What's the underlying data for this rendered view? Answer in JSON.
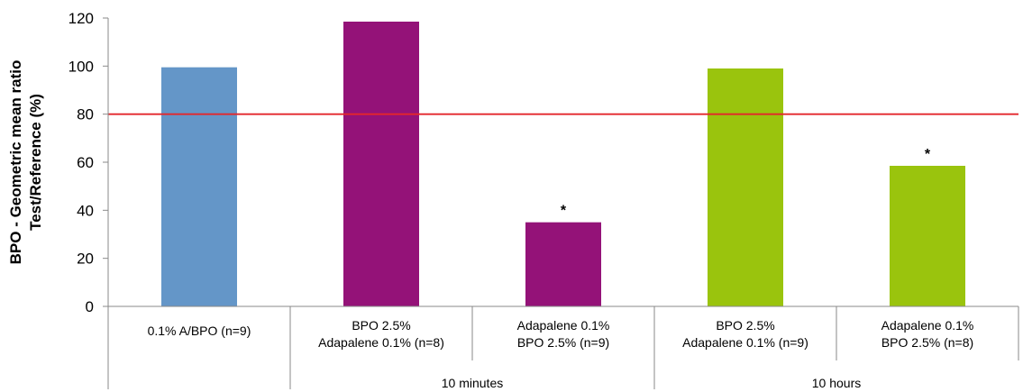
{
  "chart_data": {
    "type": "bar",
    "ylabel_lines": [
      "BPO - Geometric mean ratio",
      "Test/Reference (%)"
    ],
    "ylim": [
      0,
      120
    ],
    "yticks": [
      0,
      20,
      40,
      60,
      80,
      100,
      120
    ],
    "reference_line": {
      "value": 80,
      "color": "#e3262b"
    },
    "categories": [
      {
        "label_lines": [
          "0.1% A/BPO (n=9)"
        ],
        "value": 99.5,
        "color": "#6496c8",
        "annotation": ""
      },
      {
        "label_lines": [
          "BPO 2.5%",
          "Adapalene 0.1% (n=8)"
        ],
        "value": 118.5,
        "color": "#941278",
        "annotation": ""
      },
      {
        "label_lines": [
          "Adapalene 0.1%",
          "BPO 2.5% (n=9)"
        ],
        "value": 35,
        "color": "#941278",
        "annotation": "*"
      },
      {
        "label_lines": [
          "BPO 2.5%",
          "Adapalene 0.1% (n=9)"
        ],
        "value": 99,
        "color": "#9ac40d",
        "annotation": ""
      },
      {
        "label_lines": [
          "Adapalene 0.1%",
          "BPO 2.5% (n=8)"
        ],
        "value": 58.5,
        "color": "#9ac40d",
        "annotation": "*"
      }
    ],
    "groups": [
      {
        "label": "10 minutes",
        "categories": [
          1,
          2
        ]
      },
      {
        "label": "10 hours",
        "categories": [
          3,
          4
        ]
      }
    ],
    "grid": false,
    "legend": "none"
  }
}
